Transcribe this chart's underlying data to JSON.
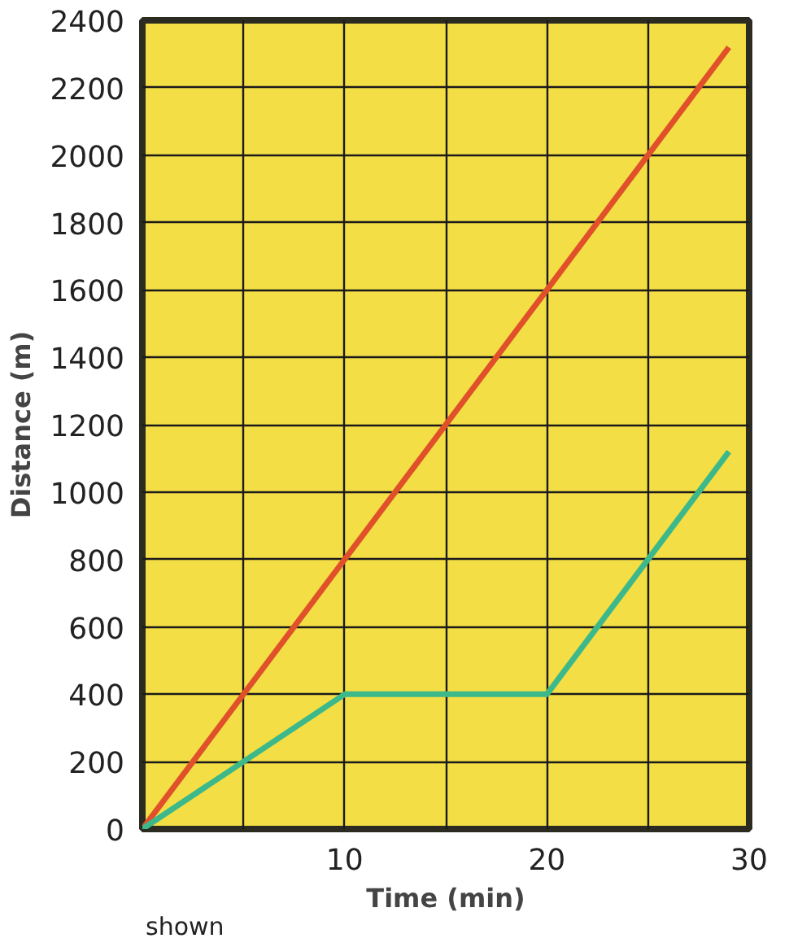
{
  "chart_data": {
    "type": "line",
    "xlabel": "Time (min)",
    "ylabel": "Distance (m)",
    "series": [
      {
        "color": "#e0502a",
        "x": [
          0,
          10,
          20,
          29
        ],
        "values": [
          0,
          800,
          1600,
          2320
        ]
      },
      {
        "color": "#3cb88a",
        "x": [
          0,
          10,
          20,
          25,
          29
        ],
        "values": [
          0,
          400,
          400,
          800,
          1120
        ]
      }
    ],
    "xlim": [
      0,
      30
    ],
    "ylim": [
      0,
      2400
    ],
    "xticks": [
      {
        "value": 5,
        "label": null
      },
      10,
      {
        "value": 15,
        "label": null
      },
      20,
      {
        "value": 25,
        "label": null
      },
      30
    ],
    "yticks": [
      0,
      200,
      400,
      600,
      800,
      1000,
      1200,
      1400,
      1600,
      1800,
      2000,
      2200,
      2400
    ],
    "grid": true,
    "line_style": "solid",
    "annotations": [
      "shown"
    ]
  }
}
